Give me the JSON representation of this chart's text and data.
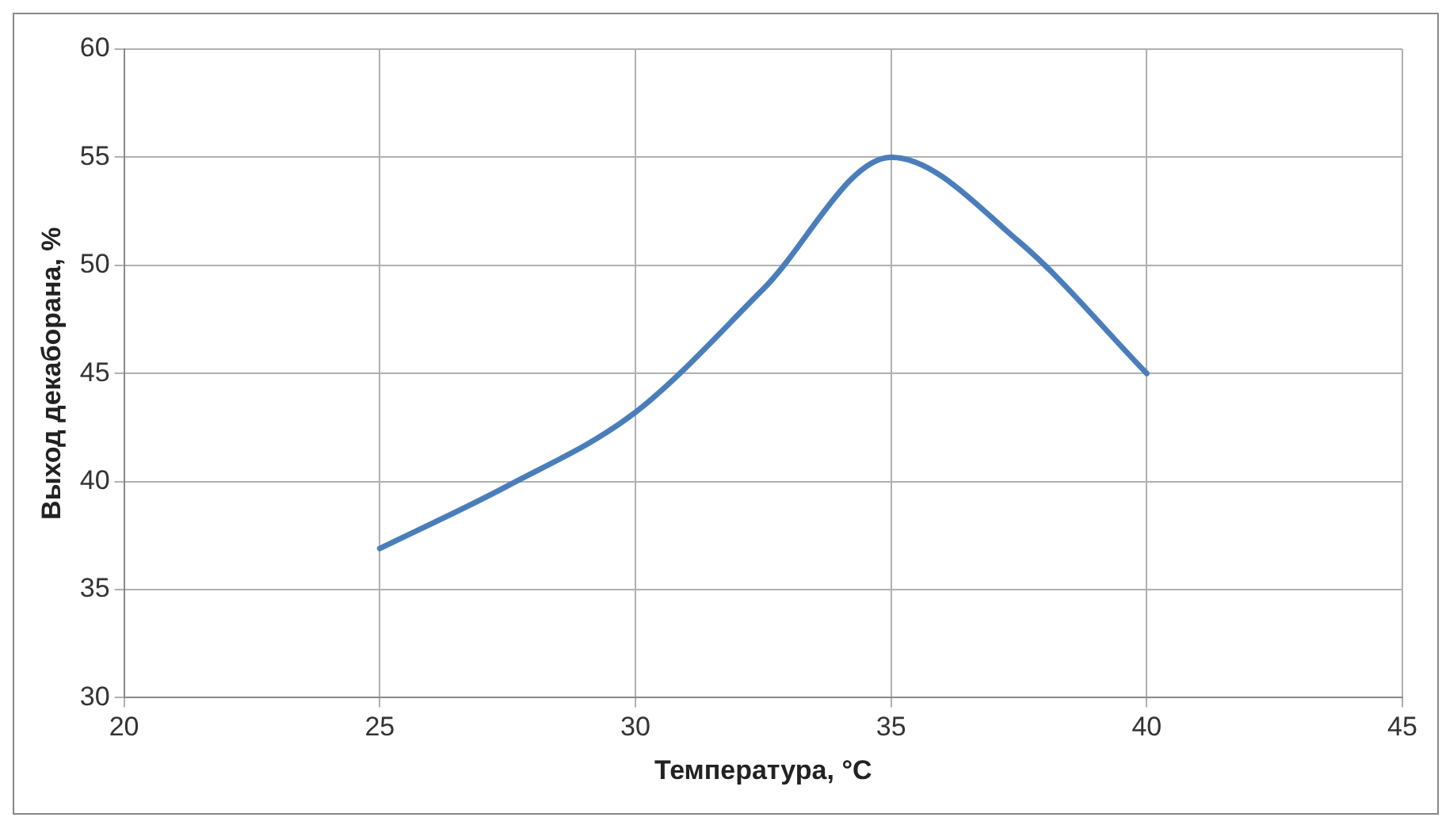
{
  "chart_data": {
    "type": "line",
    "xlabel": "Температура, °C",
    "ylabel": "Выход декаборана, %",
    "x": [
      25,
      27.5,
      30,
      32.5,
      35,
      37.5,
      40
    ],
    "series": [
      {
        "color": "#4a7ebb",
        "values": [
          36.9,
          39.8,
          43.2,
          48.9,
          55,
          51.1,
          45
        ]
      }
    ],
    "xlim": [
      20,
      45
    ],
    "xticks": [
      20,
      25,
      30,
      35,
      40,
      45
    ],
    "ylim": [
      30,
      60
    ],
    "yticks": [
      30,
      35,
      40,
      45,
      50,
      55,
      60
    ],
    "grid": true,
    "legend": false,
    "marker": "none",
    "line_style": "solid"
  }
}
